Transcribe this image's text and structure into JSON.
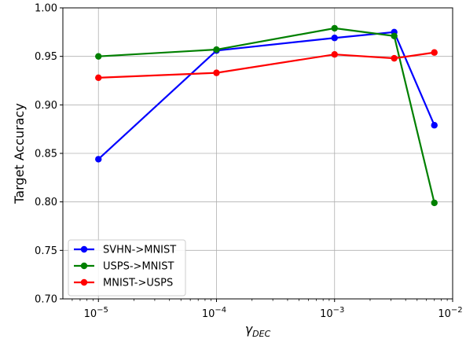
{
  "chart_data": {
    "type": "line",
    "xscale": "log",
    "xlabel": "γ",
    "xlabel_sub": "DEC",
    "ylabel": "Target Accuracy",
    "xlim": [
      5e-06,
      0.01
    ],
    "ylim": [
      0.7,
      1.0
    ],
    "xticks": [
      {
        "value": 1e-05,
        "base": "10",
        "exp": "−5"
      },
      {
        "value": 0.0001,
        "base": "10",
        "exp": "−4"
      },
      {
        "value": 0.001,
        "base": "10",
        "exp": "−3"
      },
      {
        "value": 0.01,
        "base": "10",
        "exp": "−2"
      }
    ],
    "yticks": [
      {
        "value": 0.7,
        "label": "0.70"
      },
      {
        "value": 0.75,
        "label": "0.75"
      },
      {
        "value": 0.8,
        "label": "0.80"
      },
      {
        "value": 0.85,
        "label": "0.85"
      },
      {
        "value": 0.9,
        "label": "0.90"
      },
      {
        "value": 0.95,
        "label": "0.95"
      },
      {
        "value": 1.0,
        "label": "1.00"
      }
    ],
    "grid": true,
    "legend_position": "bottom-left",
    "x": [
      1e-05,
      0.0001,
      0.001,
      0.0032,
      0.007
    ],
    "series": [
      {
        "name": "SVHN->MNIST",
        "color": "#0000ff",
        "values": [
          0.844,
          0.956,
          0.969,
          0.975,
          0.879
        ]
      },
      {
        "name": "USPS->MNIST",
        "color": "#008000",
        "values": [
          0.95,
          0.957,
          0.979,
          0.971,
          0.799
        ]
      },
      {
        "name": "MNIST->USPS",
        "color": "#ff0000",
        "values": [
          0.928,
          0.933,
          0.952,
          0.948,
          0.954
        ]
      }
    ]
  }
}
